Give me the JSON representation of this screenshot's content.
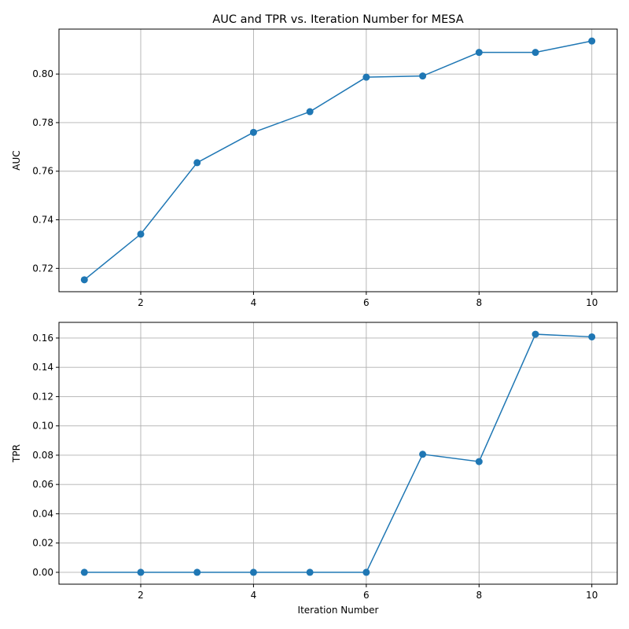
{
  "chart_data": [
    {
      "type": "line",
      "title": "AUC and TPR vs. Iteration Number for MESA",
      "xlabel": "",
      "ylabel": "AUC",
      "x": [
        1,
        2,
        3,
        4,
        5,
        6,
        7,
        8,
        9,
        10
      ],
      "series": [
        {
          "values": [
            0.7153,
            0.7341,
            0.7635,
            0.776,
            0.7845,
            0.7987,
            0.7992,
            0.8089,
            0.8089,
            0.8136
          ]
        }
      ],
      "xlim": [
        0.55,
        10.45
      ],
      "ylim": [
        0.7104,
        0.8185
      ],
      "xticks": [
        2,
        4,
        6,
        8,
        10
      ],
      "yticks": [
        0.72,
        0.74,
        0.76,
        0.78,
        0.8
      ],
      "ytick_labels": [
        "0.72",
        "0.74",
        "0.76",
        "0.78",
        "0.80"
      ],
      "grid": true,
      "color": "#1f77b4"
    },
    {
      "type": "line",
      "title": "",
      "xlabel": "Iteration Number",
      "ylabel": "TPR",
      "x": [
        1,
        2,
        3,
        4,
        5,
        6,
        7,
        8,
        9,
        10
      ],
      "series": [
        {
          "values": [
            0.0,
            0.0,
            0.0,
            0.0,
            0.0,
            0.0,
            0.0806,
            0.0756,
            0.1626,
            0.1608
          ]
        }
      ],
      "xlim": [
        0.55,
        10.45
      ],
      "ylim": [
        -0.0081,
        0.1707
      ],
      "xticks": [
        2,
        4,
        6,
        8,
        10
      ],
      "yticks": [
        0.0,
        0.02,
        0.04,
        0.06,
        0.08,
        0.1,
        0.12,
        0.14,
        0.16
      ],
      "ytick_labels": [
        "0.00",
        "0.02",
        "0.04",
        "0.06",
        "0.08",
        "0.10",
        "0.12",
        "0.14",
        "0.16"
      ],
      "grid": true,
      "color": "#1f77b4"
    }
  ]
}
